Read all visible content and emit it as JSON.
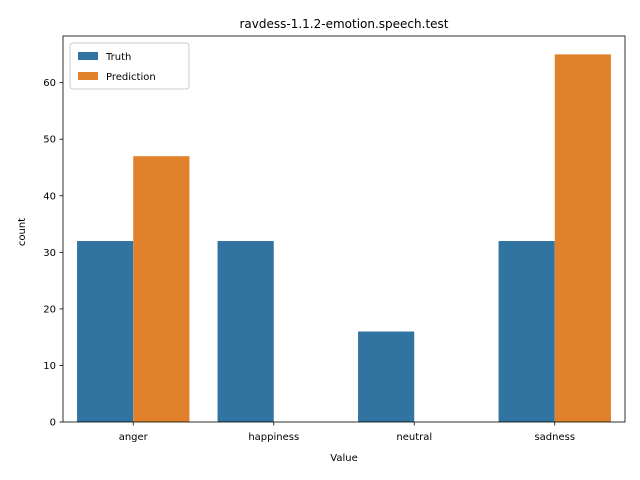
{
  "chart_data": {
    "type": "bar",
    "title": "ravdess-1.1.2-emotion.speech.test",
    "xlabel": "Value",
    "ylabel": "count",
    "categories": [
      "anger",
      "happiness",
      "neutral",
      "sadness"
    ],
    "series": [
      {
        "name": "Truth",
        "values": [
          32,
          32,
          16,
          32
        ],
        "color": "#3274a1"
      },
      {
        "name": "Prediction",
        "values": [
          47,
          0,
          0,
          65
        ],
        "color": "#e1812c"
      }
    ],
    "ylim": [
      0,
      68.25
    ],
    "yticks": [
      0,
      10,
      20,
      30,
      40,
      50,
      60
    ],
    "grid": false,
    "legend_position": "top-left"
  }
}
